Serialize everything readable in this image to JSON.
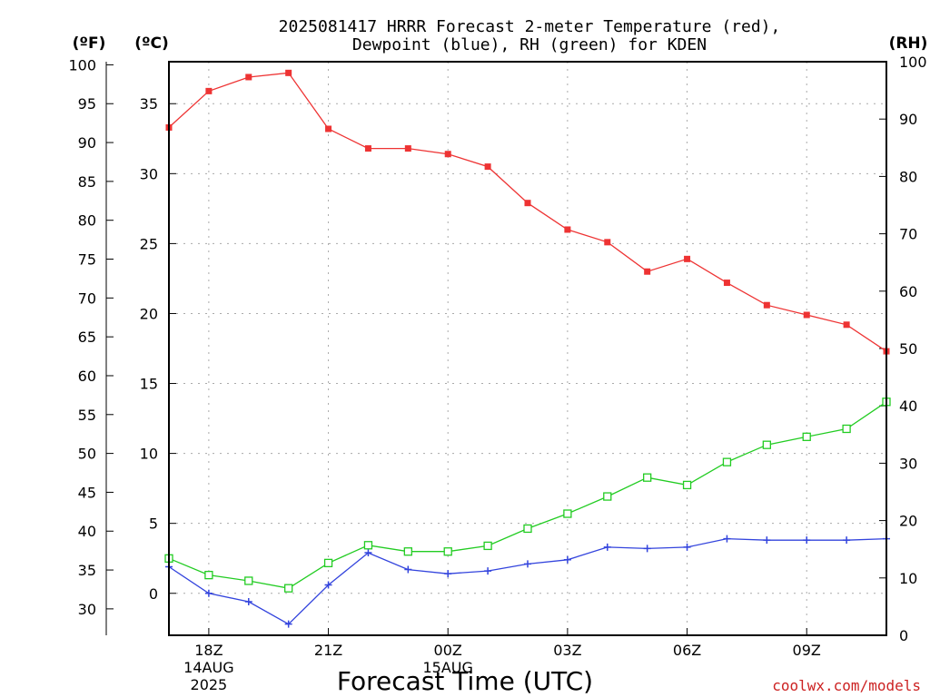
{
  "chart_data": {
    "type": "line",
    "title_lines": [
      "2025081417 HRRR Forecast 2-meter Temperature (red),",
      "Dewpoint (blue), RH (green) for KDEN"
    ],
    "xlabel": "Forecast Time (UTC)",
    "credit": "coolwx.com/models",
    "units": {
      "fahrenheit": "(ºF)",
      "celsius": "(ºC)",
      "rh": "(RH)"
    },
    "x_hours": [
      17,
      18,
      19,
      20,
      21,
      22,
      23,
      24,
      25,
      26,
      27,
      28,
      29,
      30,
      31,
      32,
      33,
      34,
      35
    ],
    "xlim": [
      17,
      35
    ],
    "x_ticks": [
      {
        "hour": 18,
        "lines": [
          "18Z",
          "14AUG",
          "2025"
        ]
      },
      {
        "hour": 21,
        "lines": [
          "21Z"
        ]
      },
      {
        "hour": 24,
        "lines": [
          "00Z",
          "15AUG"
        ]
      },
      {
        "hour": 27,
        "lines": [
          "03Z"
        ]
      },
      {
        "hour": 30,
        "lines": [
          "06Z"
        ]
      },
      {
        "hour": 33,
        "lines": [
          "09Z"
        ]
      }
    ],
    "celsius_axis": {
      "lim": [
        -3,
        38
      ],
      "ticks": [
        "0",
        "5",
        "10",
        "15",
        "20",
        "25",
        "30",
        "35"
      ],
      "grid": true
    },
    "fahrenheit_axis": {
      "ticks": [
        "30",
        "35",
        "40",
        "45",
        "50",
        "55",
        "60",
        "65",
        "70",
        "75",
        "80",
        "85",
        "90",
        "95",
        "100"
      ]
    },
    "rh_axis": {
      "lim": [
        0,
        100
      ],
      "ticks": [
        "0",
        "10",
        "20",
        "30",
        "40",
        "50",
        "60",
        "70",
        "80",
        "90",
        "100"
      ]
    },
    "series": [
      {
        "key": "temperature",
        "unit": "C",
        "color": "#ee3333",
        "marker": "filled-square",
        "values": [
          33.3,
          35.9,
          36.9,
          37.2,
          33.2,
          31.8,
          31.8,
          31.4,
          30.5,
          27.9,
          26.0,
          25.1,
          23.0,
          23.9,
          22.2,
          20.6,
          19.9,
          19.2,
          17.3
        ]
      },
      {
        "key": "dewpoint",
        "unit": "C",
        "color": "#3344dd",
        "marker": "plus",
        "values": [
          1.9,
          0.0,
          -0.6,
          -2.2,
          0.6,
          2.9,
          1.7,
          1.4,
          1.6,
          2.1,
          2.4,
          3.3,
          3.2,
          3.3,
          3.9,
          3.8,
          3.8,
          3.8,
          3.9
        ]
      },
      {
        "key": "relative_humidity",
        "unit": "RH",
        "color": "#22cc22",
        "marker": "open-square",
        "values": [
          13.4,
          10.5,
          9.5,
          8.2,
          12.6,
          15.7,
          14.6,
          14.6,
          15.6,
          18.6,
          21.2,
          24.2,
          27.5,
          26.2,
          30.2,
          33.2,
          34.6,
          36.0,
          40.7
        ]
      }
    ]
  }
}
